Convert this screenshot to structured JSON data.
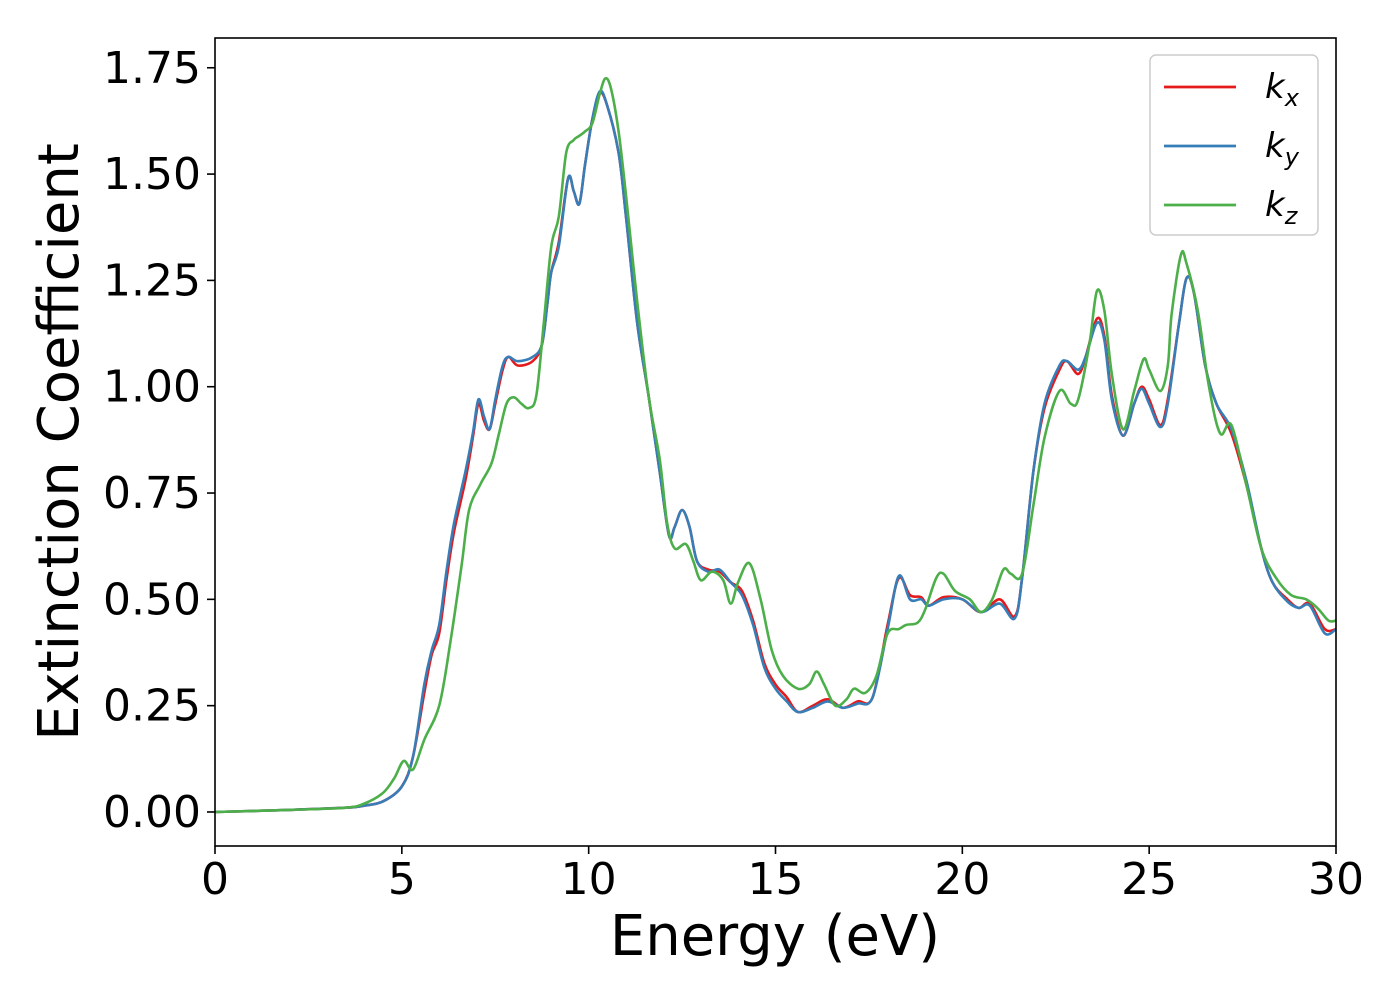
{
  "chart_data": {
    "type": "line",
    "xlabel": "Energy (eV)",
    "ylabel": "Extinction Coefficient",
    "xlim": [
      0,
      30
    ],
    "ylim": [
      -0.08,
      1.82
    ],
    "xticks": [
      0,
      5,
      10,
      15,
      20,
      25,
      30
    ],
    "xtick_labels": [
      "0",
      "5",
      "10",
      "15",
      "20",
      "25",
      "30"
    ],
    "yticks": [
      0.0,
      0.25,
      0.5,
      0.75,
      1.0,
      1.25,
      1.5,
      1.75
    ],
    "ytick_labels": [
      "0.00",
      "0.25",
      "0.50",
      "0.75",
      "1.00",
      "1.25",
      "1.50",
      "1.75"
    ],
    "grid": false,
    "legend_position": "top-right",
    "series": [
      {
        "name": "kx",
        "label_base": "k",
        "label_sub": "x",
        "color": "#e41a1c",
        "points": [
          [
            0,
            0
          ],
          [
            2,
            0.005
          ],
          [
            3.5,
            0.01
          ],
          [
            4,
            0.015
          ],
          [
            4.5,
            0.025
          ],
          [
            5,
            0.06
          ],
          [
            5.3,
            0.13
          ],
          [
            5.6,
            0.28
          ],
          [
            5.8,
            0.37
          ],
          [
            6.0,
            0.42
          ],
          [
            6.2,
            0.55
          ],
          [
            6.4,
            0.66
          ],
          [
            6.7,
            0.78
          ],
          [
            6.9,
            0.88
          ],
          [
            7.05,
            0.96
          ],
          [
            7.2,
            0.92
          ],
          [
            7.35,
            0.9
          ],
          [
            7.5,
            0.96
          ],
          [
            7.7,
            1.04
          ],
          [
            7.85,
            1.07
          ],
          [
            8.1,
            1.05
          ],
          [
            8.5,
            1.06
          ],
          [
            8.75,
            1.1
          ],
          [
            8.9,
            1.2
          ],
          [
            9.0,
            1.27
          ],
          [
            9.2,
            1.34
          ],
          [
            9.45,
            1.49
          ],
          [
            9.6,
            1.46
          ],
          [
            9.75,
            1.43
          ],
          [
            9.9,
            1.52
          ],
          [
            10.1,
            1.63
          ],
          [
            10.3,
            1.69
          ],
          [
            10.5,
            1.66
          ],
          [
            10.8,
            1.55
          ],
          [
            11.0,
            1.4
          ],
          [
            11.3,
            1.15
          ],
          [
            11.6,
            0.98
          ],
          [
            11.9,
            0.8
          ],
          [
            12.15,
            0.65
          ],
          [
            12.3,
            0.67
          ],
          [
            12.5,
            0.71
          ],
          [
            12.7,
            0.67
          ],
          [
            12.9,
            0.59
          ],
          [
            13.2,
            0.57
          ],
          [
            13.5,
            0.565
          ],
          [
            13.8,
            0.54
          ],
          [
            14.1,
            0.52
          ],
          [
            14.4,
            0.45
          ],
          [
            14.7,
            0.35
          ],
          [
            15.0,
            0.3
          ],
          [
            15.3,
            0.27
          ],
          [
            15.6,
            0.235
          ],
          [
            16.0,
            0.25
          ],
          [
            16.4,
            0.265
          ],
          [
            16.8,
            0.245
          ],
          [
            17.2,
            0.26
          ],
          [
            17.6,
            0.27
          ],
          [
            18.0,
            0.44
          ],
          [
            18.3,
            0.55
          ],
          [
            18.6,
            0.51
          ],
          [
            18.9,
            0.505
          ],
          [
            19.1,
            0.485
          ],
          [
            19.5,
            0.505
          ],
          [
            20.0,
            0.5
          ],
          [
            20.5,
            0.47
          ],
          [
            21.0,
            0.5
          ],
          [
            21.4,
            0.46
          ],
          [
            21.6,
            0.55
          ],
          [
            21.9,
            0.8
          ],
          [
            22.2,
            0.95
          ],
          [
            22.6,
            1.04
          ],
          [
            22.8,
            1.06
          ],
          [
            23.1,
            1.03
          ],
          [
            23.3,
            1.07
          ],
          [
            23.6,
            1.16
          ],
          [
            23.8,
            1.12
          ],
          [
            24.0,
            0.98
          ],
          [
            24.3,
            0.885
          ],
          [
            24.6,
            0.96
          ],
          [
            24.8,
            1.0
          ],
          [
            25.0,
            0.97
          ],
          [
            25.3,
            0.91
          ],
          [
            25.5,
            0.97
          ],
          [
            25.8,
            1.15
          ],
          [
            26.0,
            1.255
          ],
          [
            26.2,
            1.22
          ],
          [
            26.5,
            1.05
          ],
          [
            26.8,
            0.96
          ],
          [
            27.2,
            0.89
          ],
          [
            27.6,
            0.77
          ],
          [
            28.0,
            0.62
          ],
          [
            28.3,
            0.54
          ],
          [
            28.7,
            0.5
          ],
          [
            29.0,
            0.48
          ],
          [
            29.3,
            0.49
          ],
          [
            29.7,
            0.43
          ],
          [
            30.0,
            0.43
          ]
        ]
      },
      {
        "name": "ky",
        "label_base": "k",
        "label_sub": "y",
        "color": "#377eb8",
        "points": [
          [
            0,
            0
          ],
          [
            2,
            0.005
          ],
          [
            3.5,
            0.01
          ],
          [
            4,
            0.015
          ],
          [
            4.5,
            0.025
          ],
          [
            5,
            0.06
          ],
          [
            5.3,
            0.13
          ],
          [
            5.6,
            0.3
          ],
          [
            5.8,
            0.38
          ],
          [
            6.0,
            0.44
          ],
          [
            6.2,
            0.57
          ],
          [
            6.4,
            0.68
          ],
          [
            6.7,
            0.8
          ],
          [
            6.9,
            0.89
          ],
          [
            7.05,
            0.97
          ],
          [
            7.2,
            0.93
          ],
          [
            7.35,
            0.9
          ],
          [
            7.5,
            0.97
          ],
          [
            7.7,
            1.05
          ],
          [
            7.85,
            1.07
          ],
          [
            8.1,
            1.06
          ],
          [
            8.5,
            1.07
          ],
          [
            8.75,
            1.1
          ],
          [
            8.9,
            1.2
          ],
          [
            9.0,
            1.27
          ],
          [
            9.2,
            1.33
          ],
          [
            9.45,
            1.49
          ],
          [
            9.6,
            1.46
          ],
          [
            9.75,
            1.43
          ],
          [
            9.9,
            1.52
          ],
          [
            10.1,
            1.63
          ],
          [
            10.3,
            1.695
          ],
          [
            10.5,
            1.66
          ],
          [
            10.8,
            1.55
          ],
          [
            11.0,
            1.4
          ],
          [
            11.3,
            1.15
          ],
          [
            11.6,
            0.98
          ],
          [
            11.9,
            0.8
          ],
          [
            12.15,
            0.65
          ],
          [
            12.3,
            0.67
          ],
          [
            12.5,
            0.71
          ],
          [
            12.7,
            0.67
          ],
          [
            12.9,
            0.59
          ],
          [
            13.2,
            0.565
          ],
          [
            13.5,
            0.57
          ],
          [
            13.8,
            0.54
          ],
          [
            14.1,
            0.51
          ],
          [
            14.4,
            0.44
          ],
          [
            14.7,
            0.34
          ],
          [
            15.0,
            0.29
          ],
          [
            15.3,
            0.26
          ],
          [
            15.6,
            0.235
          ],
          [
            16.0,
            0.245
          ],
          [
            16.4,
            0.26
          ],
          [
            16.8,
            0.245
          ],
          [
            17.2,
            0.255
          ],
          [
            17.6,
            0.27
          ],
          [
            18.0,
            0.43
          ],
          [
            18.3,
            0.555
          ],
          [
            18.6,
            0.5
          ],
          [
            18.9,
            0.5
          ],
          [
            19.1,
            0.485
          ],
          [
            19.5,
            0.5
          ],
          [
            20.0,
            0.5
          ],
          [
            20.5,
            0.47
          ],
          [
            21.0,
            0.49
          ],
          [
            21.4,
            0.455
          ],
          [
            21.6,
            0.55
          ],
          [
            21.9,
            0.8
          ],
          [
            22.2,
            0.96
          ],
          [
            22.6,
            1.05
          ],
          [
            22.8,
            1.06
          ],
          [
            23.1,
            1.04
          ],
          [
            23.3,
            1.07
          ],
          [
            23.6,
            1.15
          ],
          [
            23.8,
            1.11
          ],
          [
            24.0,
            0.97
          ],
          [
            24.3,
            0.885
          ],
          [
            24.6,
            0.96
          ],
          [
            24.8,
            0.995
          ],
          [
            25.0,
            0.96
          ],
          [
            25.3,
            0.905
          ],
          [
            25.5,
            0.96
          ],
          [
            25.8,
            1.15
          ],
          [
            26.0,
            1.255
          ],
          [
            26.2,
            1.22
          ],
          [
            26.5,
            1.05
          ],
          [
            26.8,
            0.96
          ],
          [
            27.2,
            0.9
          ],
          [
            27.6,
            0.78
          ],
          [
            28.0,
            0.62
          ],
          [
            28.3,
            0.54
          ],
          [
            28.7,
            0.495
          ],
          [
            29.0,
            0.48
          ],
          [
            29.3,
            0.485
          ],
          [
            29.7,
            0.42
          ],
          [
            30.0,
            0.43
          ]
        ]
      },
      {
        "name": "kz",
        "label_base": "k",
        "label_sub": "z",
        "color": "#4daf4a",
        "points": [
          [
            0,
            0
          ],
          [
            2,
            0.005
          ],
          [
            3.5,
            0.01
          ],
          [
            4,
            0.02
          ],
          [
            4.5,
            0.045
          ],
          [
            4.8,
            0.08
          ],
          [
            5.05,
            0.12
          ],
          [
            5.3,
            0.1
          ],
          [
            5.6,
            0.17
          ],
          [
            6.0,
            0.25
          ],
          [
            6.3,
            0.4
          ],
          [
            6.6,
            0.58
          ],
          [
            6.8,
            0.71
          ],
          [
            7.1,
            0.77
          ],
          [
            7.4,
            0.82
          ],
          [
            7.6,
            0.89
          ],
          [
            7.8,
            0.96
          ],
          [
            8.0,
            0.975
          ],
          [
            8.2,
            0.96
          ],
          [
            8.4,
            0.95
          ],
          [
            8.6,
            0.98
          ],
          [
            8.8,
            1.15
          ],
          [
            9.0,
            1.33
          ],
          [
            9.2,
            1.4
          ],
          [
            9.4,
            1.55
          ],
          [
            9.6,
            1.58
          ],
          [
            9.75,
            1.59
          ],
          [
            9.9,
            1.6
          ],
          [
            10.1,
            1.62
          ],
          [
            10.3,
            1.69
          ],
          [
            10.45,
            1.725
          ],
          [
            10.6,
            1.7
          ],
          [
            10.8,
            1.6
          ],
          [
            11.0,
            1.45
          ],
          [
            11.3,
            1.2
          ],
          [
            11.6,
            0.98
          ],
          [
            11.9,
            0.83
          ],
          [
            12.1,
            0.68
          ],
          [
            12.3,
            0.62
          ],
          [
            12.6,
            0.63
          ],
          [
            12.8,
            0.59
          ],
          [
            13.0,
            0.545
          ],
          [
            13.3,
            0.565
          ],
          [
            13.6,
            0.545
          ],
          [
            13.8,
            0.49
          ],
          [
            14.0,
            0.54
          ],
          [
            14.3,
            0.585
          ],
          [
            14.6,
            0.5
          ],
          [
            14.9,
            0.38
          ],
          [
            15.2,
            0.32
          ],
          [
            15.6,
            0.29
          ],
          [
            15.9,
            0.3
          ],
          [
            16.1,
            0.33
          ],
          [
            16.3,
            0.3
          ],
          [
            16.6,
            0.25
          ],
          [
            16.9,
            0.265
          ],
          [
            17.1,
            0.29
          ],
          [
            17.4,
            0.28
          ],
          [
            17.7,
            0.32
          ],
          [
            18.0,
            0.42
          ],
          [
            18.3,
            0.43
          ],
          [
            18.5,
            0.44
          ],
          [
            18.8,
            0.445
          ],
          [
            19.0,
            0.475
          ],
          [
            19.3,
            0.55
          ],
          [
            19.5,
            0.56
          ],
          [
            19.8,
            0.52
          ],
          [
            20.2,
            0.5
          ],
          [
            20.5,
            0.47
          ],
          [
            20.8,
            0.5
          ],
          [
            21.1,
            0.57
          ],
          [
            21.3,
            0.56
          ],
          [
            21.6,
            0.56
          ],
          [
            21.9,
            0.72
          ],
          [
            22.2,
            0.88
          ],
          [
            22.6,
            0.99
          ],
          [
            22.9,
            0.96
          ],
          [
            23.1,
            0.97
          ],
          [
            23.4,
            1.1
          ],
          [
            23.6,
            1.225
          ],
          [
            23.8,
            1.18
          ],
          [
            24.0,
            1.03
          ],
          [
            24.3,
            0.9
          ],
          [
            24.6,
            0.99
          ],
          [
            24.85,
            1.065
          ],
          [
            25.0,
            1.04
          ],
          [
            25.3,
            0.99
          ],
          [
            25.5,
            1.05
          ],
          [
            25.6,
            1.17
          ],
          [
            25.85,
            1.31
          ],
          [
            26.0,
            1.29
          ],
          [
            26.3,
            1.18
          ],
          [
            26.6,
            1.0
          ],
          [
            26.9,
            0.89
          ],
          [
            27.2,
            0.91
          ],
          [
            27.6,
            0.77
          ],
          [
            28.0,
            0.62
          ],
          [
            28.4,
            0.55
          ],
          [
            28.8,
            0.51
          ],
          [
            29.2,
            0.5
          ],
          [
            29.5,
            0.48
          ],
          [
            29.8,
            0.45
          ],
          [
            30.0,
            0.45
          ]
        ]
      }
    ]
  }
}
